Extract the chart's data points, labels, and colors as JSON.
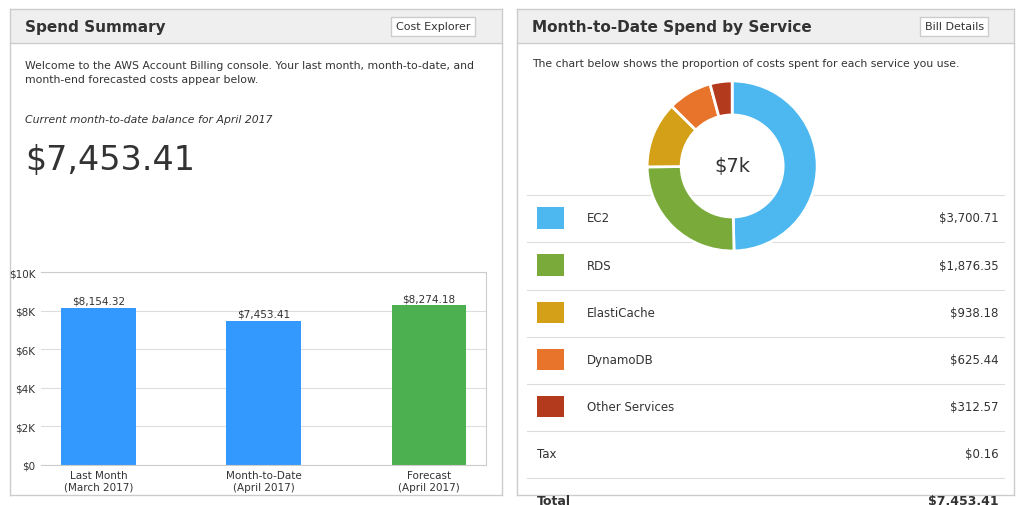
{
  "left_title": "Spend Summary",
  "left_button": "Cost Explorer",
  "left_description": "Welcome to the AWS Account Billing console. Your last month, month-to-date, and\nmonth-end forecasted costs appear below.",
  "left_subtitle": "Current month-to-date balance for April 2017",
  "left_balance": "$7,453.41",
  "bar_categories": [
    "Last Month\n(March 2017)",
    "Month-to-Date\n(April 2017)",
    "Forecast\n(April 2017)"
  ],
  "bar_values": [
    8154.32,
    7453.41,
    8274.18
  ],
  "bar_labels": [
    "$8,154.32",
    "$7,453.41",
    "$8,274.18"
  ],
  "bar_colors": [
    "#3399ff",
    "#3399ff",
    "#4caf50"
  ],
  "bar_ylim": [
    0,
    10000
  ],
  "bar_yticks": [
    0,
    2000,
    4000,
    6000,
    8000,
    10000
  ],
  "bar_yticklabels": [
    "$0",
    "$2K",
    "$4K",
    "$6K",
    "$8K",
    "$10K"
  ],
  "right_title": "Month-to-Date Spend by Service",
  "right_button": "Bill Details",
  "right_description": "The chart below shows the proportion of costs spent for each service you use.",
  "donut_center_text": "$7k",
  "donut_values": [
    3700.71,
    1876.35,
    938.18,
    625.44,
    312.57
  ],
  "donut_colors": [
    "#4db8f0",
    "#7aab3a",
    "#d4a017",
    "#e8732a",
    "#b33a1c"
  ],
  "donut_labels": [
    "EC2",
    "RDS",
    "ElastiCache",
    "DynamoDB",
    "Other Services"
  ],
  "donut_amounts": [
    "$3,700.71",
    "$1,876.35",
    "$938.18",
    "$625.44",
    "$312.57"
  ],
  "tax_label": "Tax",
  "tax_amount": "$0.16",
  "total_label": "Total",
  "total_amount": "$7,453.41",
  "bg_color": "#ffffff",
  "header_bg": "#efefef",
  "border_color": "#cccccc",
  "text_color": "#333333",
  "divider_color": "#dddddd"
}
